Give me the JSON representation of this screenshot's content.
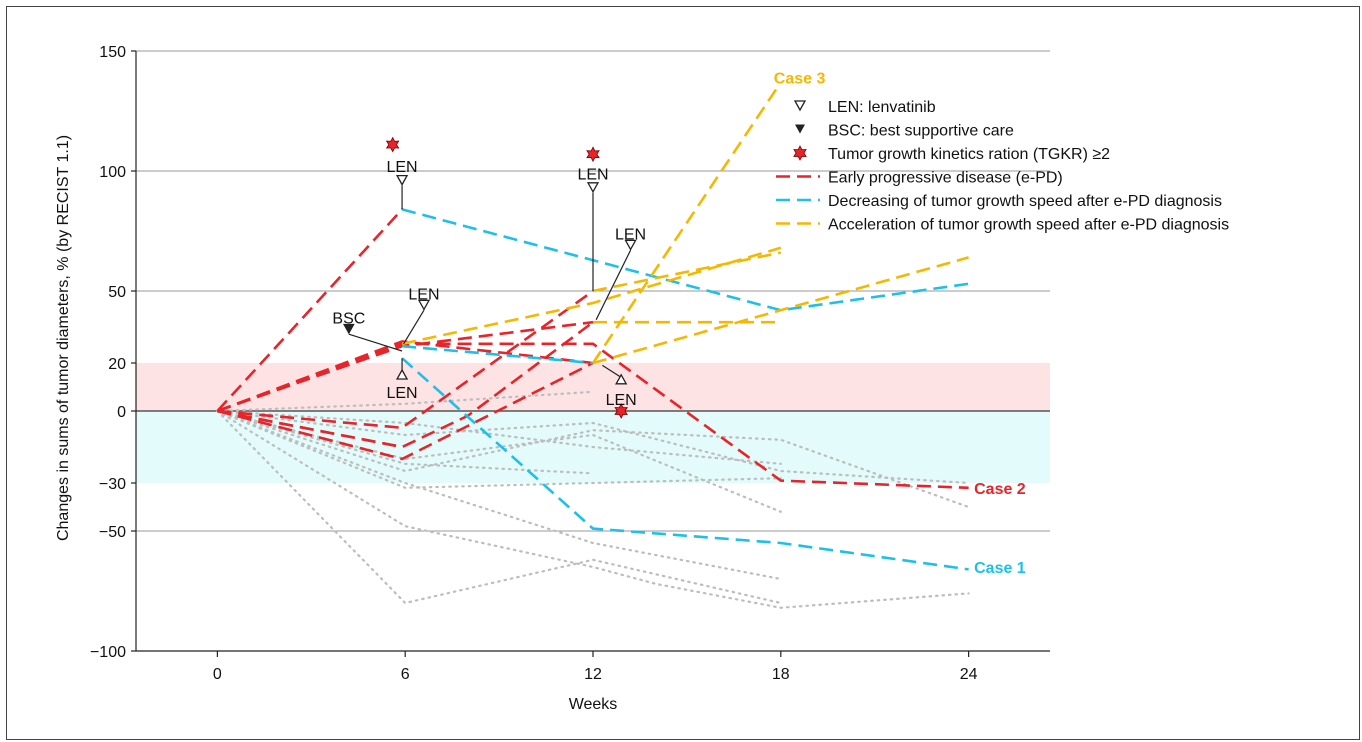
{
  "chart_data": {
    "type": "line",
    "xlabel": "Weeks",
    "ylabel": "Changes in sums of tumor diameters, % (by RECIST 1.1)",
    "xlim": [
      -2.6,
      26.6
    ],
    "ylim": [
      -100,
      150
    ],
    "xticks": [
      0,
      6,
      12,
      18,
      24
    ],
    "xtick_labels": [
      "0",
      "6",
      "12",
      "18",
      "24"
    ],
    "yticks": [
      150,
      100,
      50,
      20,
      0,
      -30,
      -50,
      -100
    ],
    "ytick_labels": [
      "150",
      "100",
      "50",
      "20",
      "0",
      "−30",
      "−50",
      "−100"
    ],
    "reference_lines": [
      150,
      100,
      50,
      0,
      -50
    ],
    "bands": [
      {
        "y0": 0,
        "y1": 20,
        "color": "#fde3e3"
      },
      {
        "y0": -30,
        "y1": 0,
        "color": "#e3fbfb"
      }
    ],
    "colors": {
      "red": "#e8242a",
      "blue": "#1ec0ea",
      "yellow": "#f5b800",
      "gray": "#bdbdbd"
    },
    "series": [
      {
        "color": "red",
        "points": [
          [
            0,
            0
          ],
          [
            5.9,
            84
          ]
        ]
      },
      {
        "color": "red",
        "points": [
          [
            0,
            0
          ],
          [
            5.9,
            28
          ],
          [
            12,
            28
          ],
          [
            18,
            -29
          ],
          [
            24,
            -32
          ]
        ]
      },
      {
        "color": "red",
        "points": [
          [
            0,
            0
          ],
          [
            5.9,
            29
          ],
          [
            12,
            20
          ]
        ]
      },
      {
        "color": "red",
        "points": [
          [
            0,
            0
          ],
          [
            5.9,
            27
          ],
          [
            12,
            37
          ]
        ]
      },
      {
        "color": "red",
        "points": [
          [
            0,
            0
          ],
          [
            5.9,
            -7
          ],
          [
            12,
            50
          ]
        ]
      },
      {
        "color": "red",
        "points": [
          [
            0,
            0
          ],
          [
            5.9,
            -15
          ],
          [
            8,
            -2
          ],
          [
            12,
            37
          ]
        ]
      },
      {
        "color": "red",
        "points": [
          [
            0,
            0
          ],
          [
            5.9,
            -20
          ],
          [
            12,
            20
          ]
        ]
      },
      {
        "color": "red",
        "points": [
          [
            0,
            0
          ],
          [
            5.9,
            -15
          ]
        ]
      },
      {
        "color": "blue",
        "points": [
          [
            5.9,
            84
          ],
          [
            18,
            42
          ],
          [
            24,
            53
          ]
        ]
      },
      {
        "color": "blue",
        "points": [
          [
            5.9,
            27
          ],
          [
            12,
            20
          ]
        ]
      },
      {
        "color": "blue",
        "points": [
          [
            5.9,
            22
          ],
          [
            12,
            -49
          ],
          [
            18,
            -55
          ],
          [
            24,
            -66
          ]
        ]
      },
      {
        "color": "yellow",
        "points": [
          [
            5.9,
            28
          ],
          [
            12,
            45
          ],
          [
            18,
            68
          ]
        ]
      },
      {
        "color": "yellow",
        "points": [
          [
            12,
            50
          ],
          [
            18,
            66
          ]
        ]
      },
      {
        "color": "yellow",
        "points": [
          [
            12,
            20
          ],
          [
            24,
            64
          ]
        ]
      },
      {
        "color": "yellow",
        "points": [
          [
            12,
            37
          ],
          [
            18,
            37
          ]
        ]
      },
      {
        "color": "yellow",
        "points": [
          [
            12,
            20
          ],
          [
            17.9,
            135
          ]
        ]
      },
      {
        "color": "gray",
        "points": [
          [
            0,
            0
          ],
          [
            6,
            -30
          ],
          [
            12,
            -55
          ],
          [
            18,
            -70
          ]
        ]
      },
      {
        "color": "gray",
        "points": [
          [
            0,
            0
          ],
          [
            6,
            -48
          ],
          [
            12,
            -65
          ],
          [
            14,
            -72
          ],
          [
            18,
            -82
          ],
          [
            24,
            -76
          ]
        ]
      },
      {
        "color": "gray",
        "points": [
          [
            0,
            0
          ],
          [
            6,
            -80
          ],
          [
            12,
            -62
          ],
          [
            18,
            -80
          ]
        ]
      },
      {
        "color": "gray",
        "points": [
          [
            0,
            0
          ],
          [
            6,
            -20
          ],
          [
            12,
            -10
          ],
          [
            18,
            -42
          ]
        ]
      },
      {
        "color": "gray",
        "points": [
          [
            0,
            0
          ],
          [
            6,
            -25
          ],
          [
            12,
            -8
          ],
          [
            18,
            -12
          ],
          [
            24,
            -40
          ]
        ]
      },
      {
        "color": "gray",
        "points": [
          [
            0,
            0
          ],
          [
            6,
            -10
          ],
          [
            12,
            -5
          ],
          [
            18,
            -25
          ],
          [
            24,
            -30
          ]
        ]
      },
      {
        "color": "gray",
        "points": [
          [
            0,
            0
          ],
          [
            6,
            -32
          ],
          [
            12,
            -30
          ],
          [
            18,
            -28
          ]
        ]
      },
      {
        "color": "gray",
        "points": [
          [
            0,
            0
          ],
          [
            6,
            -22
          ],
          [
            12,
            -26
          ]
        ]
      },
      {
        "color": "gray",
        "points": [
          [
            0,
            0
          ],
          [
            6,
            3
          ],
          [
            12,
            8
          ]
        ]
      },
      {
        "color": "gray",
        "points": [
          [
            0,
            0
          ],
          [
            6,
            -5
          ],
          [
            12,
            -15
          ],
          [
            18,
            -22
          ]
        ]
      }
    ],
    "star_markers": [
      [
        5.6,
        111
      ],
      [
        12,
        107
      ],
      [
        12.9,
        0
      ]
    ],
    "open_triangles": [
      [
        5.9,
        96
      ],
      [
        12,
        93
      ],
      [
        13.2,
        69
      ],
      [
        6.6,
        44
      ]
    ],
    "up_triangles": [
      [
        5.9,
        15
      ],
      [
        12.9,
        13
      ]
    ],
    "filled_triangles": [
      [
        4.2,
        34
      ]
    ],
    "connectors": [
      [
        [
          5.9,
          94
        ],
        [
          5.9,
          84
        ]
      ],
      [
        [
          12,
          91
        ],
        [
          12,
          50
        ]
      ],
      [
        [
          13.2,
          67
        ],
        [
          12.1,
          38
        ]
      ],
      [
        [
          6.6,
          42
        ],
        [
          5.95,
          28
        ]
      ],
      [
        [
          4.2,
          32
        ],
        [
          5.9,
          25
        ]
      ],
      [
        [
          5.9,
          17
        ],
        [
          5.9,
          22
        ]
      ],
      [
        [
          12.9,
          14
        ],
        [
          12.3,
          19
        ]
      ]
    ],
    "annotations": [
      {
        "text": "LEN",
        "x": 5.9,
        "y": 102
      },
      {
        "text": "LEN",
        "x": 12,
        "y": 99
      },
      {
        "text": "LEN",
        "x": 13.2,
        "y": 74
      },
      {
        "text": "LEN",
        "x": 6.6,
        "y": 49
      },
      {
        "text": "BSC",
        "x": 4.2,
        "y": 39
      },
      {
        "text": "LEN",
        "x": 5.9,
        "y": 8
      },
      {
        "text": "LEN",
        "x": 12.9,
        "y": 5
      }
    ],
    "case_labels": [
      {
        "text": "Case 3",
        "color": "yellow",
        "x": 18.6,
        "y": 139
      },
      {
        "text": "Case 2",
        "color": "red",
        "x": 25,
        "y": -32
      },
      {
        "text": "Case 1",
        "color": "blue",
        "x": 25,
        "y": -65
      }
    ],
    "legend": {
      "position": "top-right",
      "entries": [
        {
          "symbol": "open-triangle-down",
          "text": "LEN: lenvatinib"
        },
        {
          "symbol": "filled-triangle-down",
          "text": "BSC: best supportive care"
        },
        {
          "symbol": "red-star",
          "text": "Tumor growth kinetics ration (TGKR) ≥2"
        },
        {
          "symbol": "line-red",
          "text": "Early progressive disease (e-PD)"
        },
        {
          "symbol": "line-blue",
          "text": "Decreasing of tumor growth speed after e-PD diagnosis"
        },
        {
          "symbol": "line-yellow",
          "text": "Acceleration of tumor growth speed after e-PD diagnosis"
        }
      ]
    }
  }
}
